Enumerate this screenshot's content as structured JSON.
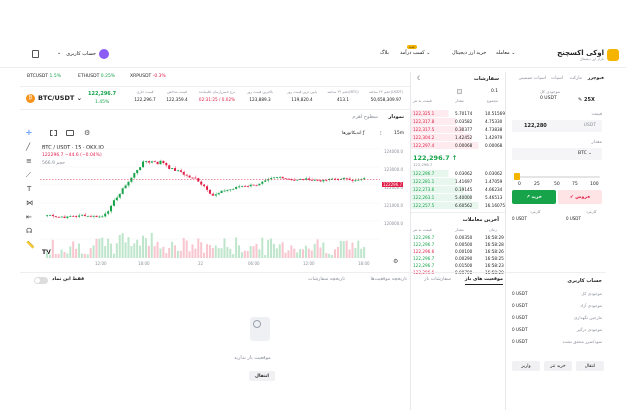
{
  "nav": {
    "logo_name": "اوکی اکسچنج",
    "logo_sub": "بازار ارز دیجیتال",
    "items": [
      "معامله",
      "خرید ارز دیجیتال",
      "کسب درآمد",
      "بلاگ"
    ],
    "badge_new": "جدید",
    "account_label": "حساب کاربری"
  },
  "ticker": [
    {
      "symbol": "BTCUSDT",
      "change": "1.5%",
      "tone": "green"
    },
    {
      "symbol": "ETHUSDT",
      "change": "0.25%",
      "tone": "green"
    },
    {
      "symbol": "XRPUSDT",
      "change": "-0.3%",
      "tone": "red"
    }
  ],
  "pair": {
    "symbol": "BTC/USDT",
    "price": "122,296.7",
    "change": "1.45%",
    "stats": [
      {
        "label": "قیمت جاری",
        "value": "122,296.7"
      },
      {
        "label": "قیمت شاخص",
        "value": "122,359.4"
      },
      {
        "label": "نرخ تامین/زمان باقیمانده",
        "value": "02:31:25 / 0.02%"
      },
      {
        "label": "بالاترین قیمت روز",
        "value": "123,889.3"
      },
      {
        "label": "پایین ترین قیمت روز",
        "value": "119,820.4"
      },
      {
        "label": "حجم ۲۴ ساعته(BTC)",
        "value": "413.1"
      },
      {
        "label": "حجم ۲۴ ساعته(USDT)",
        "value": "50,658,309.97"
      }
    ]
  },
  "chart_tabs": {
    "active": "نمودار",
    "other": "سطوح اهرم"
  },
  "chart_toolbar": {
    "interval": "15m",
    "indicators": "اندیکاتورها"
  },
  "chart_legend": {
    "title": "BTC / USDT · 15 · OKX.IO",
    "ohlc": "122296.7 −44.6 (−0.04%)",
    "vol": "حجم  566.9"
  },
  "chart_data": {
    "type": "candlestick",
    "y_ticks": [
      "124000.0",
      "123000.0",
      "122000.0",
      "121000.0",
      "120000.0"
    ],
    "x_ticks": [
      "12:00",
      "18:00",
      "22",
      "06:00",
      "12:00",
      "18:00"
    ],
    "current_price_tag": "122296.7",
    "y_range": [
      119600,
      124400
    ]
  },
  "orderbook": {
    "title": "سفارشات",
    "tick": "0.1",
    "cols": [
      "قیمت به تتر",
      "مقدار",
      "مجموع"
    ],
    "asks": [
      [
        "122,325.1",
        "5.70174",
        "10.51569"
      ],
      [
        "122,317.8",
        "0.03582",
        "4.75330"
      ],
      [
        "122,317.5",
        "0.30377",
        "4.73838"
      ],
      [
        "122,304.2",
        "1.42452",
        "1.42979"
      ],
      [
        "122,297.4",
        "0.00068",
        "0.00068"
      ]
    ],
    "mid_price": "122,296.7",
    "mid_usd": "122,296.7",
    "bids": [
      [
        "122,296.7",
        "0.03062",
        "0.03062"
      ],
      [
        "122,281.1",
        "1.41697",
        "1.47059"
      ],
      [
        "122,273.6",
        "0.19145",
        "4.66234"
      ],
      [
        "122,263.1",
        "5.40000",
        "5.46513"
      ],
      [
        "122,257.5",
        "6.60562",
        "16.16075"
      ]
    ]
  },
  "trades": {
    "title": "آخرین معاملات",
    "cols": [
      "قیمت به تتر",
      "مقدار",
      "زمان"
    ],
    "rows": [
      [
        "122,296.7",
        "0.00350",
        "16:58:29",
        "green"
      ],
      [
        "122,296.7",
        "0.00500",
        "16:58:28",
        "green"
      ],
      [
        "122,296.6",
        "0.00100",
        "16:58:26",
        "red"
      ],
      [
        "122,296.7",
        "0.00290",
        "16:58:25",
        "green"
      ],
      [
        "122,296.7",
        "0.01500",
        "16:58:23",
        "green"
      ],
      [
        "122,296.6",
        "0.00700",
        "16:58:20",
        "red"
      ]
    ]
  },
  "order_form": {
    "tabs": [
      "فیوچرز",
      "مارکت",
      "اسپات",
      "اسپات تضمینی"
    ],
    "balance_label": "موجودی کل",
    "balance_value": "0 USDT",
    "leverage": "25X",
    "price_label": "قیمت",
    "price_value": "122,280",
    "price_unit": "USDT",
    "amount_label": "مقدار",
    "amount_unit": "BTC",
    "slider_marks": [
      "0",
      "25",
      "50",
      "75",
      "100"
    ],
    "sell_label": "فروش",
    "buy_label": "خرید",
    "fee_labels": [
      "کارمزد",
      "کارمزد"
    ],
    "fee_values": [
      "0 USDT",
      "0 USDT"
    ]
  },
  "account": {
    "title": "حساب کاربری",
    "rows": [
      {
        "label": "موجودی کل",
        "value": "0 USDT"
      },
      {
        "label": "موجودی آزاد",
        "value": "0 USDT"
      },
      {
        "label": "مارجین نگهداری",
        "value": "0 USDT"
      },
      {
        "label": "موجودی درگیر",
        "value": "0 USDT"
      },
      {
        "label": "سود/ضرر محقق نشده",
        "value": "0 USDT"
      }
    ],
    "buttons": [
      "انتقال",
      "خرید تتر",
      "واریز"
    ]
  },
  "bottom": {
    "tabs": [
      "موقعیت های باز",
      "سفارشات باز",
      "تاریخچه موقعیت‌ها",
      "تاریخچه سفارشات"
    ],
    "toggle_label": "فقط این نماد",
    "empty_text": "موقعیت باز ندارید",
    "transfer": "انتقال"
  },
  "colors": {
    "up": "#16a34a",
    "down": "#e11d48",
    "accent": "#f5b400",
    "up_bg": "#e8f7ee",
    "down_bg": "#fdebef"
  }
}
